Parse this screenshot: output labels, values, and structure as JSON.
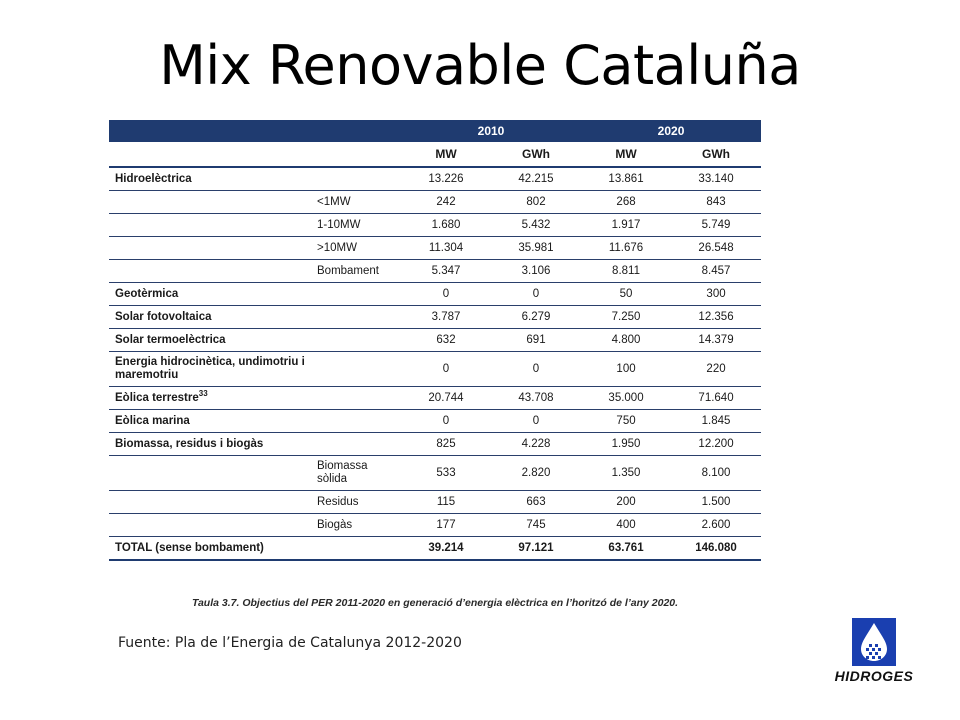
{
  "title": "Mix Renovable Cataluña",
  "table": {
    "years": [
      "2010",
      "2020"
    ],
    "units": [
      "MW",
      "GWh",
      "MW",
      "GWh"
    ],
    "rows": [
      {
        "name": "Hidroelèctrica",
        "sub": "",
        "values": [
          "13.226",
          "42.215",
          "13.861",
          "33.140"
        ]
      },
      {
        "name": "",
        "sub": "<1MW",
        "values": [
          "242",
          "802",
          "268",
          "843"
        ]
      },
      {
        "name": "",
        "sub": "1-10MW",
        "values": [
          "1.680",
          "5.432",
          "1.917",
          "5.749"
        ]
      },
      {
        "name": "",
        "sub": ">10MW",
        "values": [
          "11.304",
          "35.981",
          "11.676",
          "26.548"
        ]
      },
      {
        "name": "",
        "sub": "Bombament",
        "values": [
          "5.347",
          "3.106",
          "8.811",
          "8.457"
        ]
      },
      {
        "name": "Geotèrmica",
        "sub": "",
        "values": [
          "0",
          "0",
          "50",
          "300"
        ]
      },
      {
        "name": "Solar fotovoltaica",
        "sub": "",
        "values": [
          "3.787",
          "6.279",
          "7.250",
          "12.356"
        ]
      },
      {
        "name": "Solar termoelèctrica",
        "sub": "",
        "values": [
          "632",
          "691",
          "4.800",
          "14.379"
        ]
      },
      {
        "name": "Energia hidrocinètica, undimotriu i maremotriu",
        "sub": "",
        "values": [
          "0",
          "0",
          "100",
          "220"
        ]
      },
      {
        "name": "Eòlica terrestre",
        "note": "33",
        "sub": "",
        "values": [
          "20.744",
          "43.708",
          "35.000",
          "71.640"
        ]
      },
      {
        "name": "Eòlica marina",
        "sub": "",
        "values": [
          "0",
          "0",
          "750",
          "1.845"
        ]
      },
      {
        "name": "Biomassa, residus i biogàs",
        "sub": "",
        "values": [
          "825",
          "4.228",
          "1.950",
          "12.200"
        ]
      },
      {
        "name": "",
        "sub": "Biomassa sòlida",
        "values": [
          "533",
          "2.820",
          "1.350",
          "8.100"
        ]
      },
      {
        "name": "",
        "sub": "Residus",
        "values": [
          "115",
          "663",
          "200",
          "1.500"
        ]
      },
      {
        "name": "",
        "sub": "Biogàs",
        "values": [
          "177",
          "745",
          "400",
          "2.600"
        ]
      },
      {
        "name": "TOTAL (sense bombament)",
        "sub": "",
        "values": [
          "39.214",
          "97.121",
          "63.761",
          "146.080"
        ]
      }
    ]
  },
  "caption": "Taula 3.7. Objectius del PER 2011-2020 en generació d’energia elèctrica en l’horitzó de l’any 2020.",
  "source": "Fuente: Pla de l’Energia de Catalunya 2012-2020",
  "logo": {
    "text": "HIDROGES",
    "icon": "water-drop-logo-icon",
    "color": "#1a3fb0"
  },
  "colors": {
    "header_bg": "#1f3b70",
    "header_text": "#ffffff"
  }
}
